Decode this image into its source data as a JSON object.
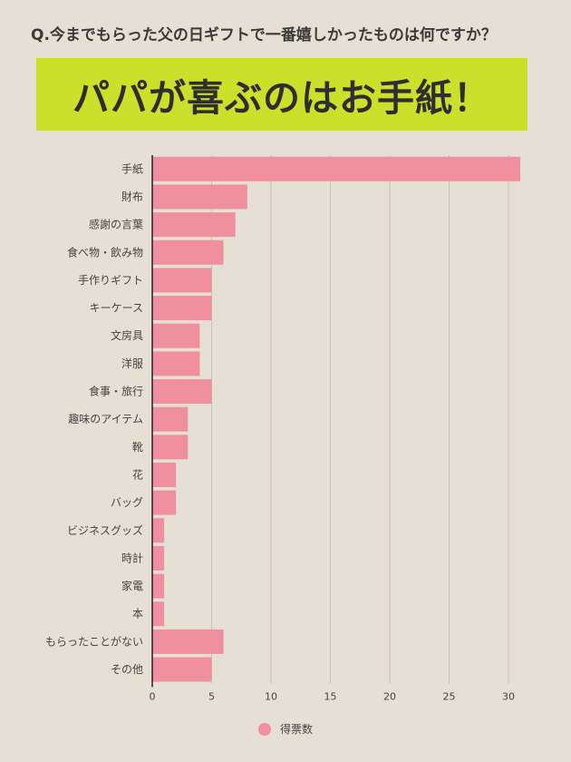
{
  "question": "Q.今までもらった父の日ギフトで一番嬉しかったものは何ですか？",
  "headline": "パパが喜ぶのはお手紙！",
  "colors": {
    "background": "#e6dfd3",
    "headline_bg": "#cbe02a",
    "bar": "#ef8fa0",
    "grid": "#c9c2b8"
  },
  "chart_data": {
    "type": "bar",
    "orientation": "horizontal",
    "categories": [
      "手紙",
      "財布",
      "感謝の言葉",
      "食べ物・飲み物",
      "手作りギフト",
      "キーケース",
      "文房具",
      "洋服",
      "食事・旅行",
      "趣味のアイテム",
      "靴",
      "花",
      "バッグ",
      "ビジネスグッズ",
      "時計",
      "家電",
      "本",
      "もらったことがない",
      "その他"
    ],
    "series": [
      {
        "name": "得票数",
        "values": [
          31,
          8,
          7,
          6,
          5,
          5,
          4,
          4,
          5,
          3,
          3,
          2,
          2,
          1,
          1,
          1,
          1,
          6,
          5
        ]
      }
    ],
    "xlim": [
      0,
      31
    ],
    "xticks": [
      0,
      5,
      10,
      15,
      20,
      25,
      30
    ],
    "grid": true,
    "legend_position": "bottom"
  }
}
